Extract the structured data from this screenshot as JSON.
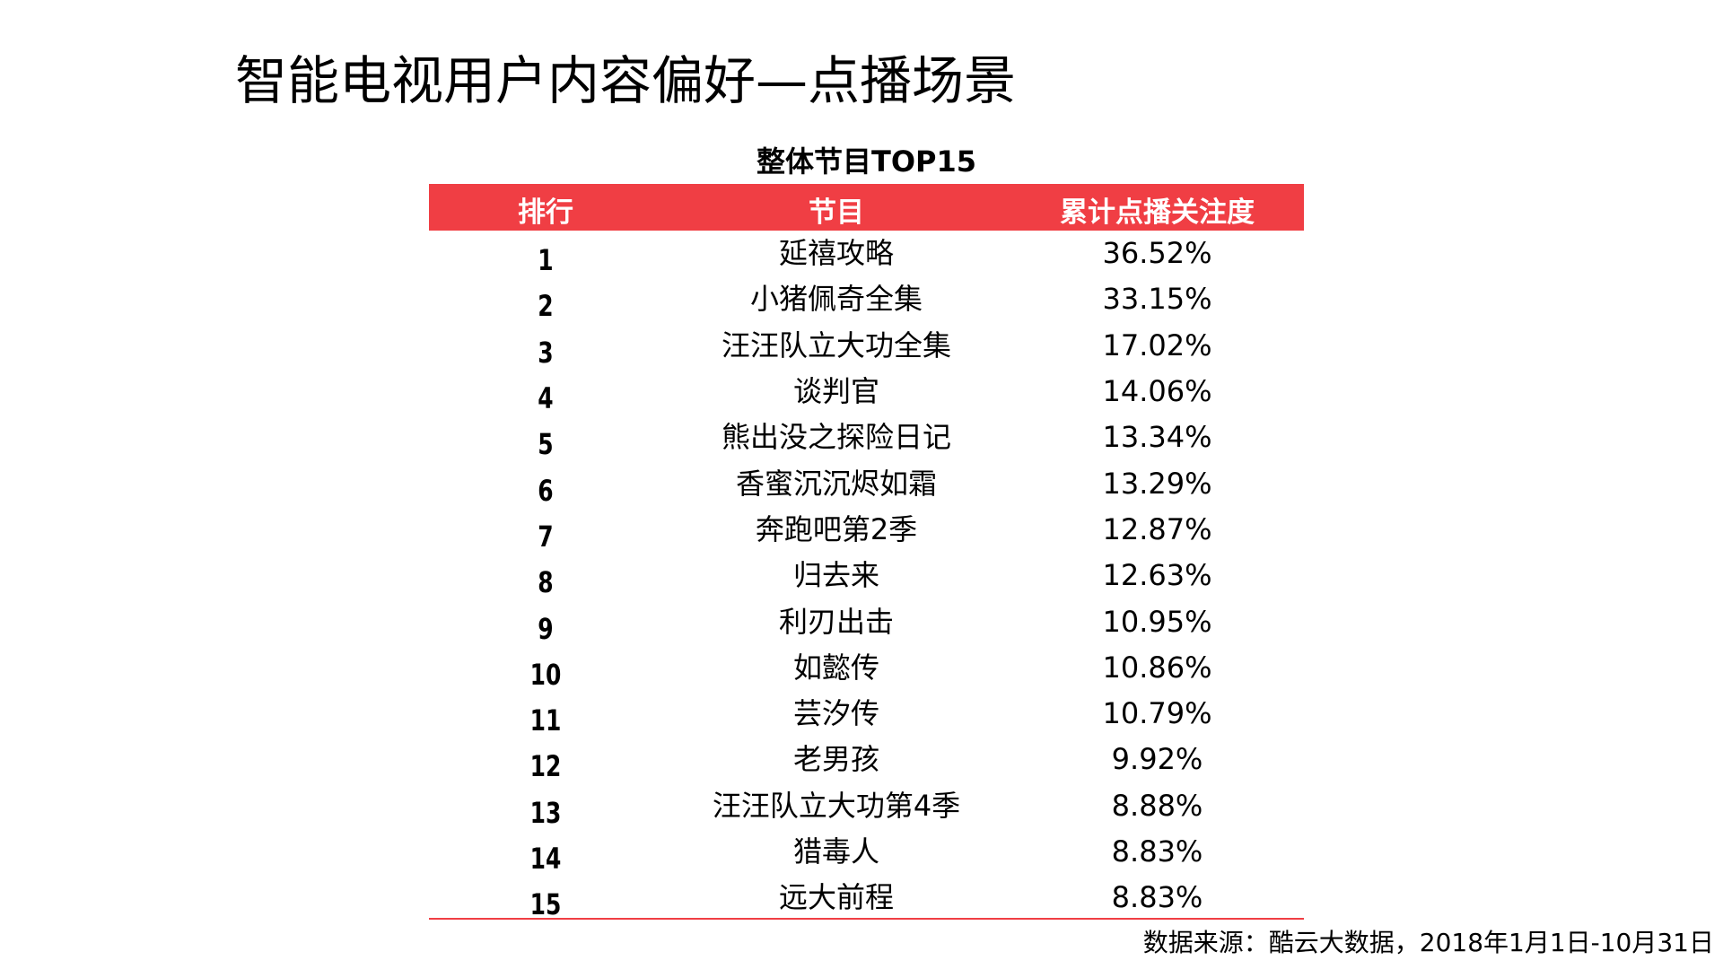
{
  "page": {
    "title": "智能电视用户内容偏好—点播场景",
    "table_title": "整体节目TOP15",
    "source_note": "数据来源：酷云大数据，2018年1月1日-10月31日"
  },
  "table": {
    "headers": {
      "rank": "排行",
      "program": "节目",
      "value": "累计点播关注度"
    },
    "rows": [
      {
        "rank": "1",
        "program": "延禧攻略",
        "value": "36.52%"
      },
      {
        "rank": "2",
        "program": "小猪佩奇全集",
        "value": "33.15%"
      },
      {
        "rank": "3",
        "program": "汪汪队立大功全集",
        "value": "17.02%"
      },
      {
        "rank": "4",
        "program": "谈判官",
        "value": "14.06%"
      },
      {
        "rank": "5",
        "program": "熊出没之探险日记",
        "value": "13.34%"
      },
      {
        "rank": "6",
        "program": "香蜜沉沉烬如霜",
        "value": "13.29%"
      },
      {
        "rank": "7",
        "program": "奔跑吧第2季",
        "value": "12.87%"
      },
      {
        "rank": "8",
        "program": "归去来",
        "value": "12.63%"
      },
      {
        "rank": "9",
        "program": "利刃出击",
        "value": "10.95%"
      },
      {
        "rank": "10",
        "program": "如懿传",
        "value": "10.86%"
      },
      {
        "rank": "11",
        "program": "芸汐传",
        "value": "10.79%"
      },
      {
        "rank": "12",
        "program": "老男孩",
        "value": "9.92%"
      },
      {
        "rank": "13",
        "program": "汪汪队立大功第4季",
        "value": "8.88%"
      },
      {
        "rank": "14",
        "program": "猎毒人",
        "value": "8.83%"
      },
      {
        "rank": "15",
        "program": "远大前程",
        "value": "8.83%"
      }
    ]
  },
  "colors": {
    "accent_red": "#f03e44",
    "header_text": "#ffffff",
    "body_text": "#000000",
    "background": "#ffffff"
  }
}
